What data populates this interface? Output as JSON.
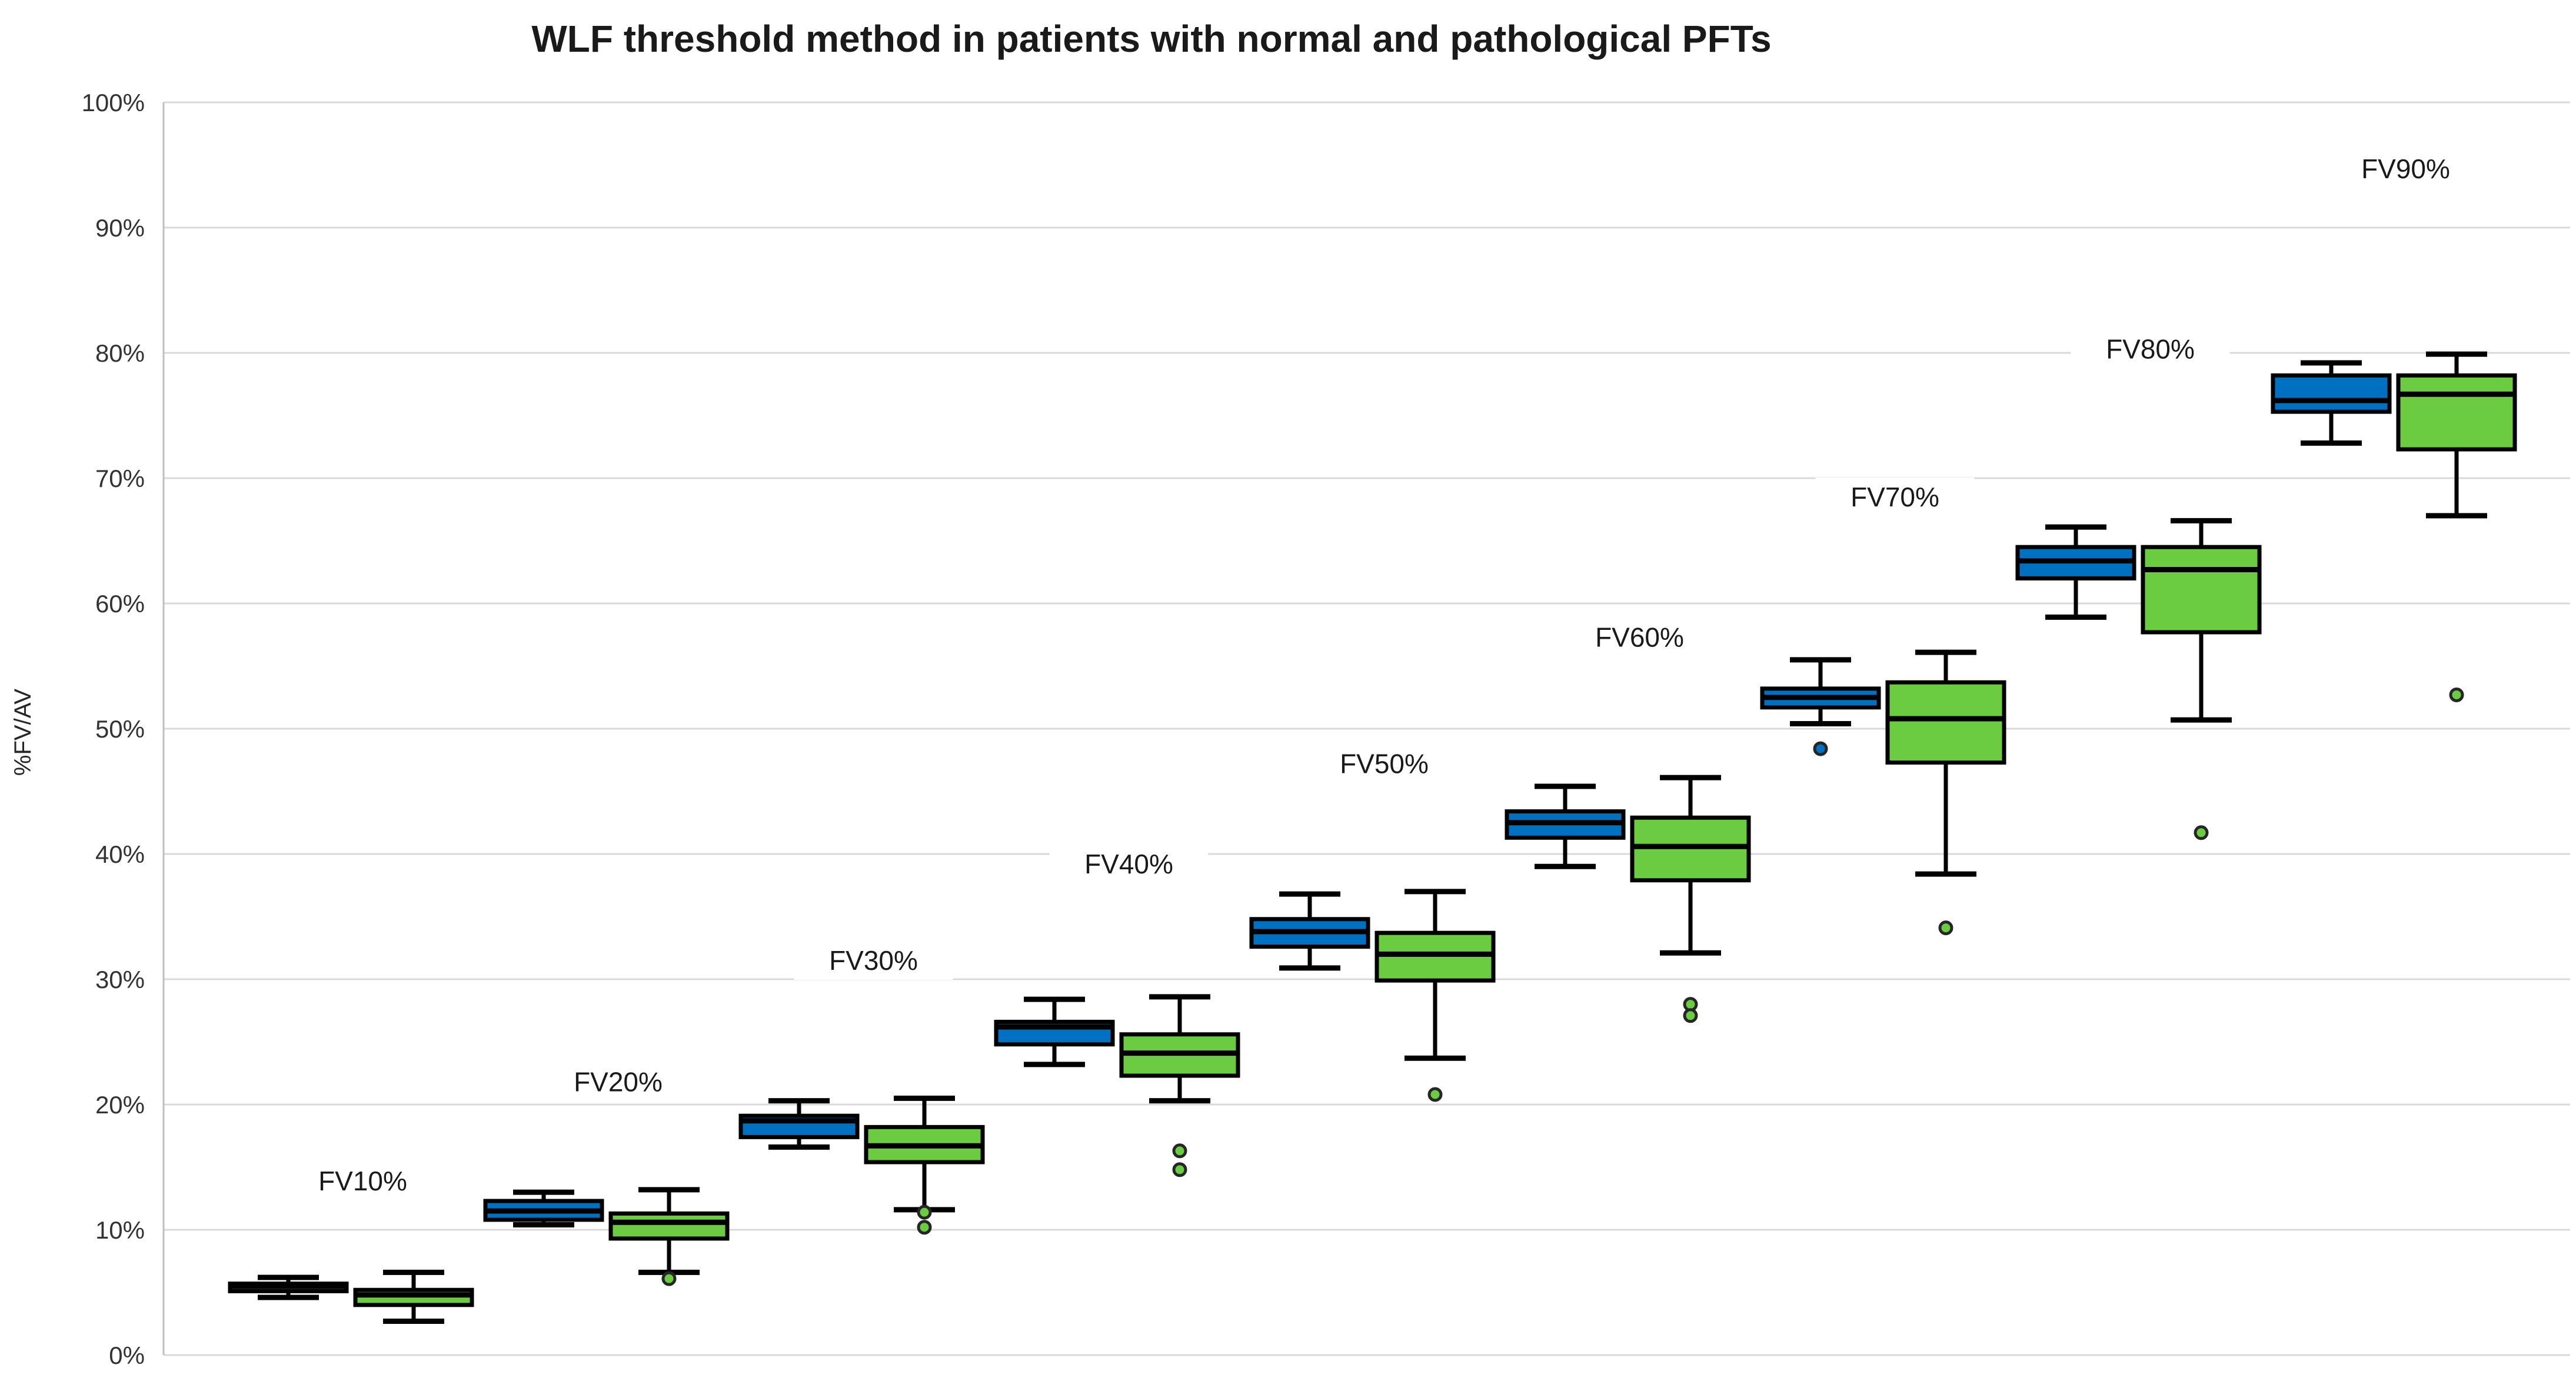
{
  "chart_data": {
    "type": "boxplot",
    "title": "WLF threshold method in patients with normal and pathological PFTs",
    "ylabel": "%FV/AV",
    "ylim": [
      0,
      100
    ],
    "yticks": [
      "0%",
      "10%",
      "20%",
      "30%",
      "40%",
      "50%",
      "60%",
      "70%",
      "80%",
      "90%",
      "100%"
    ],
    "grid": true,
    "legend": "none",
    "xtick_labels": "none",
    "categories": [
      "FV10%",
      "FV20%",
      "FV30%",
      "FV40%",
      "FV50%",
      "FV60%",
      "FV70%",
      "FV80%",
      "FV90%"
    ],
    "category_label_y_pct": [
      13.9,
      21.8,
      31.5,
      39.2,
      47.2,
      57.3,
      68.5,
      80.3,
      94.7
    ],
    "series": [
      {
        "name": "blue",
        "color": "#0070C0",
        "boxes": [
          {
            "category": "FV10%",
            "min": 4.6,
            "q1": 5.1,
            "median": 5.5,
            "q3": 5.7,
            "max": 6.2,
            "outliers": []
          },
          {
            "category": "FV20%",
            "min": 10.4,
            "q1": 10.8,
            "median": 11.5,
            "q3": 12.3,
            "max": 13.0,
            "outliers": []
          },
          {
            "category": "FV30%",
            "min": 16.6,
            "q1": 17.4,
            "median": 18.7,
            "q3": 19.1,
            "max": 20.3,
            "outliers": []
          },
          {
            "category": "FV40%",
            "min": 23.2,
            "q1": 24.8,
            "median": 26.2,
            "q3": 26.6,
            "max": 28.4,
            "outliers": []
          },
          {
            "category": "FV50%",
            "min": 30.9,
            "q1": 32.6,
            "median": 33.8,
            "q3": 34.8,
            "max": 36.8,
            "outliers": []
          },
          {
            "category": "FV60%",
            "min": 39.0,
            "q1": 41.3,
            "median": 42.5,
            "q3": 43.4,
            "max": 45.4,
            "outliers": []
          },
          {
            "category": "FV70%",
            "min": 50.4,
            "q1": 51.7,
            "median": 52.5,
            "q3": 53.2,
            "max": 55.5,
            "outliers": [
              48.4
            ]
          },
          {
            "category": "FV80%",
            "min": 58.9,
            "q1": 62.0,
            "median": 63.4,
            "q3": 64.5,
            "max": 66.1,
            "outliers": []
          },
          {
            "category": "FV90%",
            "min": 72.8,
            "q1": 75.3,
            "median": 76.2,
            "q3": 78.2,
            "max": 79.2,
            "outliers": []
          }
        ]
      },
      {
        "name": "green",
        "color": "#6BCB41",
        "boxes": [
          {
            "category": "FV10%",
            "min": 2.7,
            "q1": 4.0,
            "median": 4.8,
            "q3": 5.2,
            "max": 6.6,
            "outliers": []
          },
          {
            "category": "FV20%",
            "min": 6.6,
            "q1": 9.3,
            "median": 10.6,
            "q3": 11.3,
            "max": 13.2,
            "outliers": [
              6.1
            ]
          },
          {
            "category": "FV30%",
            "min": 11.6,
            "q1": 15.4,
            "median": 16.7,
            "q3": 18.2,
            "max": 20.5,
            "outliers": [
              11.4,
              10.2
            ]
          },
          {
            "category": "FV40%",
            "min": 20.3,
            "q1": 22.3,
            "median": 24.1,
            "q3": 25.6,
            "max": 28.6,
            "outliers": [
              16.3,
              14.8
            ]
          },
          {
            "category": "FV50%",
            "min": 23.7,
            "q1": 29.9,
            "median": 32.0,
            "q3": 33.7,
            "max": 37.0,
            "outliers": [
              20.8
            ]
          },
          {
            "category": "FV60%",
            "min": 32.1,
            "q1": 37.9,
            "median": 40.6,
            "q3": 42.9,
            "max": 46.1,
            "outliers": [
              28.0,
              27.1
            ]
          },
          {
            "category": "FV70%",
            "min": 38.4,
            "q1": 47.3,
            "median": 50.8,
            "q3": 53.7,
            "max": 56.1,
            "outliers": [
              34.1
            ]
          },
          {
            "category": "FV80%",
            "min": 50.7,
            "q1": 57.7,
            "median": 62.7,
            "q3": 64.5,
            "max": 66.6,
            "outliers": [
              41.7
            ]
          },
          {
            "category": "FV90%",
            "min": 67.0,
            "q1": 72.3,
            "median": 76.7,
            "q3": 78.2,
            "max": 79.9,
            "outliers": [
              52.7
            ]
          }
        ]
      }
    ],
    "colors": {
      "box_border": "#000000",
      "gridline": "#D9D9D9",
      "axis_line": "#BFBFBF",
      "outlier_ring": "#262626",
      "label_background": "#FFFFFF"
    }
  }
}
